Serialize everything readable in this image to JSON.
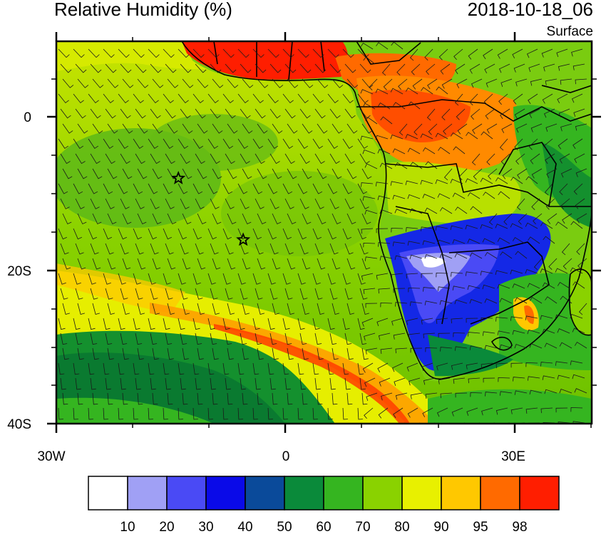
{
  "header": {
    "title": "Relative Humidity (%)",
    "valid_time": "2018-10-18_06",
    "level": "Surface"
  },
  "axes": {
    "lat_labels": [
      "0",
      "20S",
      "40S"
    ],
    "lon_labels": [
      "30W",
      "0",
      "30E"
    ]
  },
  "colorbar": {
    "labels": [
      "10",
      "20",
      "30",
      "40",
      "50",
      "60",
      "70",
      "80",
      "90",
      "95",
      "98"
    ],
    "colors": [
      "#ffffff",
      "#a0a0f5",
      "#4a4af5",
      "#0a0ae8",
      "#0a4a9a",
      "#0a8a3a",
      "#35b520",
      "#8ad200",
      "#e8f000",
      "#ffc800",
      "#ff6a00",
      "#ff1e00"
    ]
  },
  "markers": [
    {
      "name": "star-marker-1",
      "lon": -14,
      "lat": -8
    },
    {
      "name": "star-marker-2",
      "lon": -5.5,
      "lat": -16
    }
  ]
}
